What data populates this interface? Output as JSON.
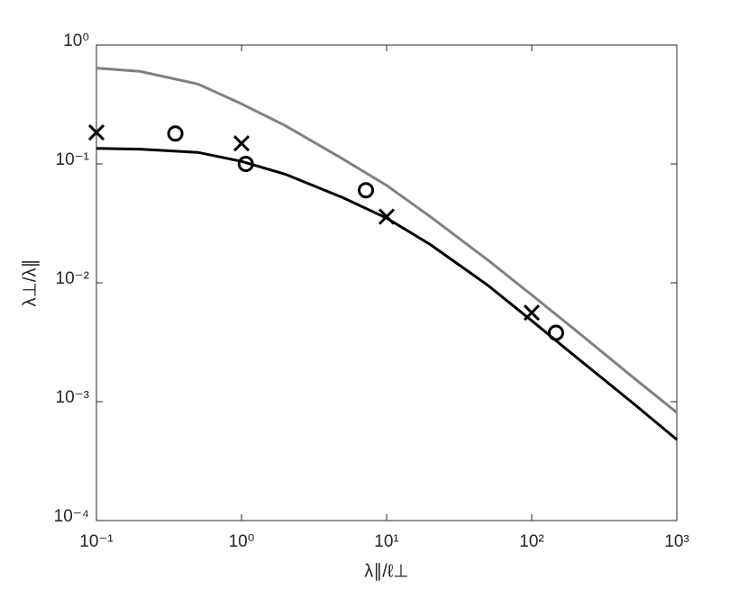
{
  "chart_data": {
    "type": "line",
    "xlabel": "λ∥/ℓ⊥",
    "ylabel": "λ⊥/λ∥",
    "xscale": "log",
    "yscale": "log",
    "xlim": [
      0.1,
      1000
    ],
    "ylim": [
      0.0001,
      1
    ],
    "xticks": [
      {
        "value": 0.1,
        "label": "10⁻¹"
      },
      {
        "value": 1,
        "label": "10⁰"
      },
      {
        "value": 10,
        "label": "10¹"
      },
      {
        "value": 100,
        "label": "10²"
      },
      {
        "value": 1000,
        "label": "10³"
      }
    ],
    "yticks": [
      {
        "value": 0.0001,
        "label": "10⁻⁴"
      },
      {
        "value": 0.001,
        "label": "10⁻³"
      },
      {
        "value": 0.01,
        "label": "10⁻²"
      },
      {
        "value": 0.1,
        "label": "10⁻¹"
      },
      {
        "value": 1,
        "label": "10⁰"
      }
    ],
    "series": [
      {
        "style": "line",
        "color": "#808080",
        "x": [
          0.1,
          0.2,
          0.5,
          1,
          2,
          5,
          10,
          20,
          50,
          100,
          200,
          500,
          1000
        ],
        "values": [
          0.64,
          0.6,
          0.47,
          0.32,
          0.21,
          0.11,
          0.066,
          0.036,
          0.0155,
          0.0079,
          0.004,
          0.0016,
          0.00081
        ]
      },
      {
        "style": "line",
        "color": "#000000",
        "x": [
          0.1,
          0.2,
          0.5,
          1,
          2,
          5,
          10,
          20,
          50,
          100,
          200,
          500,
          1000
        ],
        "values": [
          0.135,
          0.133,
          0.125,
          0.105,
          0.082,
          0.052,
          0.035,
          0.021,
          0.0095,
          0.0048,
          0.0024,
          0.00097,
          0.00048
        ]
      },
      {
        "style": "cross",
        "color": "#000000",
        "x": [
          0.1,
          1,
          10,
          100
        ],
        "values": [
          0.184,
          0.149,
          0.036,
          0.0056
        ]
      },
      {
        "style": "circle",
        "color": "#000000",
        "x": [
          0.35,
          1.07,
          7.2,
          147
        ],
        "values": [
          0.18,
          0.1,
          0.06,
          0.0038
        ]
      }
    ]
  }
}
